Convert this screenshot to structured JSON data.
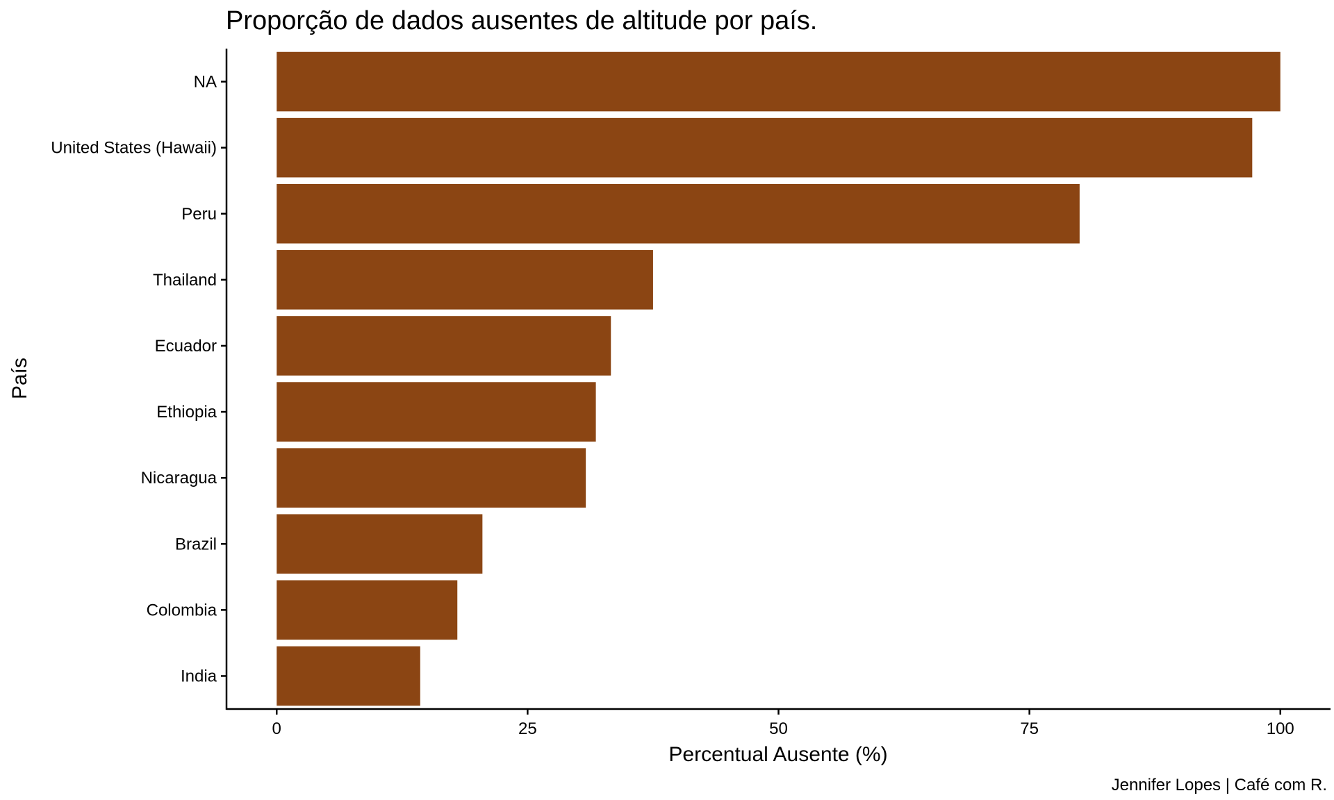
{
  "chart_data": {
    "type": "bar",
    "orientation": "horizontal",
    "title": "Proporção de dados ausentes de altitude por país.",
    "xlabel": "Percentual Ausente (%)",
    "ylabel": "País",
    "caption": "Jennifer Lopes | Café com R.",
    "categories": [
      "NA",
      "United States (Hawaii)",
      "Peru",
      "Thailand",
      "Ecuador",
      "Ethiopia",
      "Nicaragua",
      "Brazil",
      "Colombia",
      "India"
    ],
    "values": [
      100,
      97.2,
      80,
      37.5,
      33.3,
      31.8,
      30.8,
      20.5,
      18,
      14.3
    ],
    "xlim": [
      -5,
      105
    ],
    "xticks": [
      0,
      25,
      50,
      75,
      100
    ],
    "grid": false,
    "bar_color": "#8B4513"
  }
}
